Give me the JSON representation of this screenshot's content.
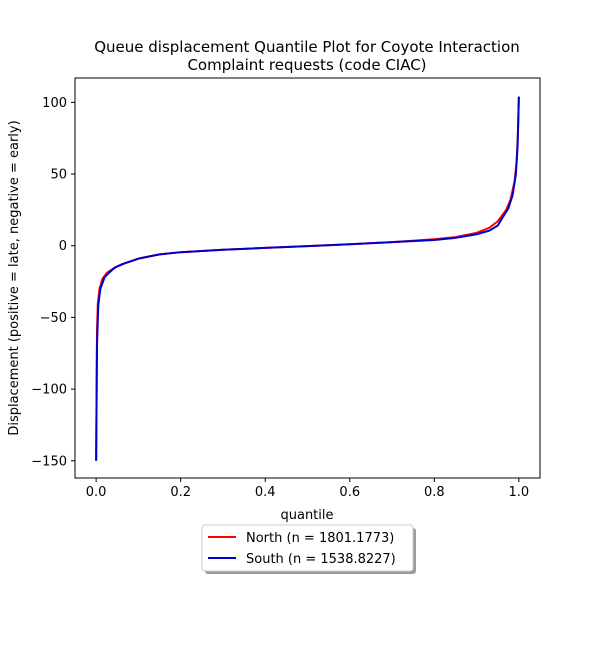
{
  "chart_data": {
    "type": "line",
    "title_lines": [
      "Queue displacement Quantile Plot for Coyote Interaction",
      "Complaint  requests (code CIAC)"
    ],
    "xlabel": "quantile",
    "ylabel": "Displacement (positive = late, negative = early)",
    "xlim": [
      -0.05,
      1.05
    ],
    "ylim": [
      -162,
      117
    ],
    "x_ticks": [
      0.0,
      0.2,
      0.4,
      0.6,
      0.8,
      1.0
    ],
    "x_tick_labels": [
      "0.0",
      "0.2",
      "0.4",
      "0.6",
      "0.8",
      "1.0"
    ],
    "y_ticks": [
      -150,
      -100,
      -50,
      0,
      50,
      100
    ],
    "y_tick_labels": [
      "−150",
      "−100",
      "−50",
      "0",
      "50",
      "100"
    ],
    "grid": false,
    "legend_position": "below plot, centered",
    "series": [
      {
        "name": "North (n = 1801.1773)",
        "color": "#ff0000",
        "x": [
          0.0,
          0.002,
          0.004,
          0.008,
          0.015,
          0.025,
          0.04,
          0.06,
          0.1,
          0.15,
          0.2,
          0.3,
          0.4,
          0.5,
          0.6,
          0.7,
          0.8,
          0.85,
          0.9,
          0.93,
          0.95,
          0.97,
          0.98,
          0.99,
          0.995,
          0.998,
          1.0
        ],
        "y": [
          -150,
          -60,
          -40,
          -30,
          -23,
          -19,
          -16,
          -13,
          -9,
          -6,
          -4.5,
          -2.8,
          -1.5,
          -0.3,
          1.0,
          2.5,
          4.5,
          6.0,
          9.0,
          12.5,
          17.0,
          25.0,
          32.0,
          45.0,
          60.0,
          80.0,
          104
        ]
      },
      {
        "name": "South (n = 1538.8227)",
        "color": "#0000cc",
        "x": [
          0.0,
          0.002,
          0.005,
          0.01,
          0.02,
          0.03,
          0.045,
          0.07,
          0.1,
          0.15,
          0.2,
          0.3,
          0.4,
          0.5,
          0.6,
          0.7,
          0.8,
          0.85,
          0.9,
          0.93,
          0.95,
          0.96,
          0.975,
          0.985,
          0.993,
          0.997,
          1.0
        ],
        "y": [
          -150,
          -70,
          -42,
          -30,
          -22,
          -19,
          -15,
          -12,
          -9,
          -6,
          -4.5,
          -2.8,
          -1.5,
          -0.3,
          1.0,
          2.5,
          4.0,
          5.5,
          8.0,
          10.5,
          14.0,
          19.0,
          26.0,
          35.0,
          50.0,
          70.0,
          104
        ]
      }
    ]
  }
}
